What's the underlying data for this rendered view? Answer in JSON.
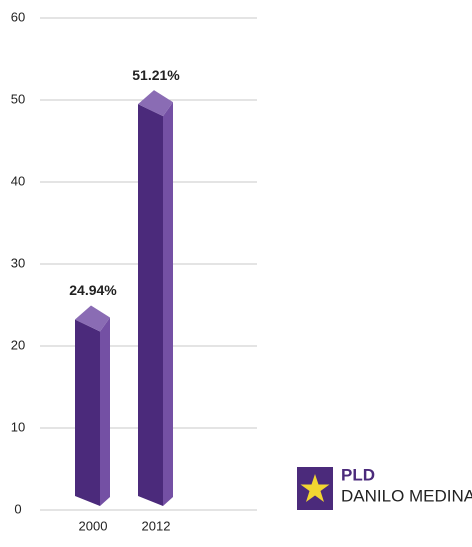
{
  "chart_data": {
    "type": "bar3d",
    "categories": [
      "2000",
      "2012"
    ],
    "values": [
      24.94,
      51.21
    ],
    "value_labels": [
      "24.94%",
      "51.21%"
    ],
    "color": "#4b2a7b",
    "ylim": [
      0,
      60
    ],
    "yticks": [
      0,
      10,
      20,
      30,
      40,
      50,
      60
    ],
    "grid": true,
    "legend": {
      "title": "PLD",
      "label": "DANILO MEDINA",
      "corner": "bottom-right"
    }
  }
}
